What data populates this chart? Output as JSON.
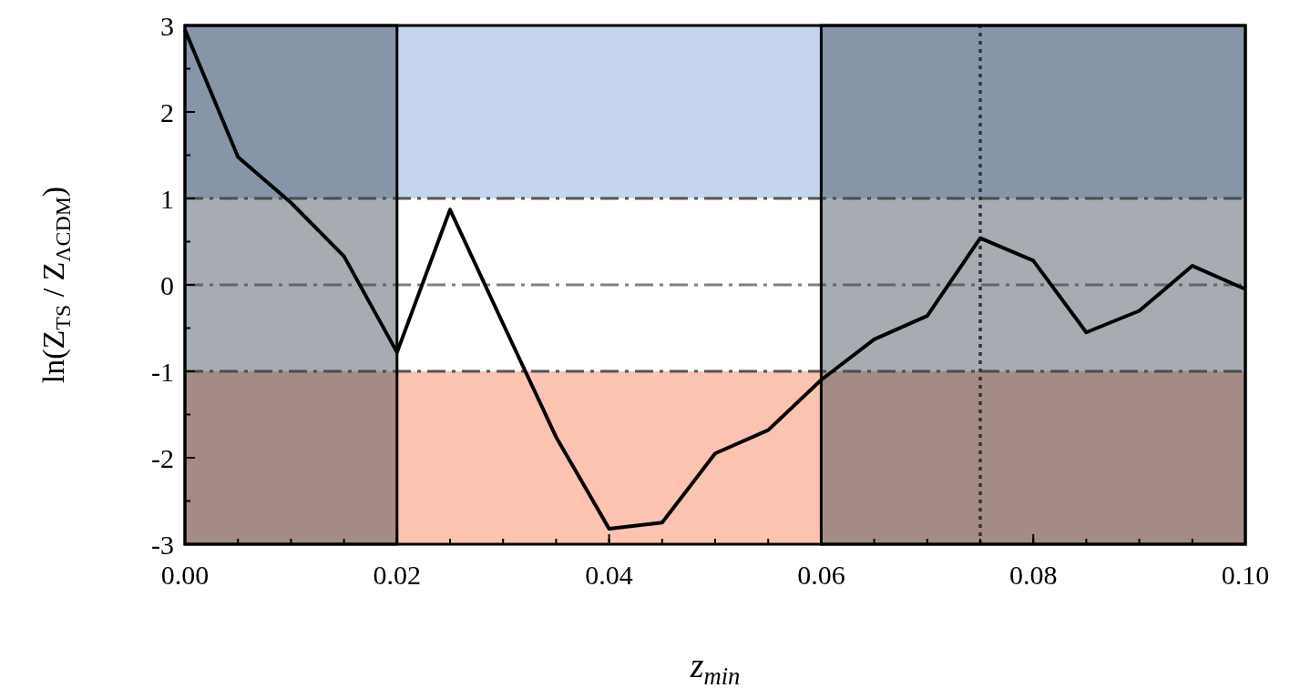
{
  "chart_data": {
    "type": "line",
    "xlabel": "z$_{min}$",
    "ylabel": "ln(Z$_{TS}$ / Z$_{ΛCDM}$)",
    "x": [
      0,
      0.005,
      0.01,
      0.015,
      0.02,
      0.025,
      0.03,
      0.035,
      0.04,
      0.045,
      0.05,
      0.055,
      0.06,
      0.065,
      0.07,
      0.075,
      0.08,
      0.085,
      0.09,
      0.095,
      0.1
    ],
    "series": [
      {
        "color": "#000000",
        "values": [
          2.95,
          1.48,
          0.95,
          0.33,
          -0.78,
          0.87,
          -0.45,
          -1.76,
          -2.82,
          -2.75,
          -1.95,
          -1.68,
          -1.1,
          -0.63,
          -0.36,
          0.54,
          0.28,
          -0.55,
          -0.3,
          0.22,
          -0.05
        ]
      }
    ],
    "xlim": [
      0,
      0.1
    ],
    "ylim": [
      -3,
      3
    ],
    "xticks": [
      {
        "value": 0,
        "label": "0.00"
      },
      {
        "value": 0.02,
        "label": "0.02"
      },
      {
        "value": 0.04,
        "label": "0.04"
      },
      {
        "value": 0.06,
        "label": "0.06"
      },
      {
        "value": 0.08,
        "label": "0.08"
      },
      {
        "value": 0.1,
        "label": "0.10"
      }
    ],
    "yticks": [
      -3,
      -2,
      -1,
      0,
      1,
      2,
      3
    ],
    "bands": [
      {
        "axis": "y",
        "from": 1,
        "to": 3,
        "color": "#c5d5ee"
      },
      {
        "axis": "y",
        "from": -3,
        "to": -1,
        "color": "#fcc3b0"
      },
      {
        "axis": "x",
        "from": 0,
        "to": 0.02,
        "color": "#3a4652"
      },
      {
        "axis": "x",
        "from": 0.06,
        "to": 0.1,
        "color": "#3a4652"
      }
    ],
    "ref_lines": [
      {
        "axis": "y",
        "value": 1,
        "color": "#555555",
        "line_style": "dashed"
      },
      {
        "axis": "y",
        "value": 0,
        "color": "#808080",
        "line_style": "dashed"
      },
      {
        "axis": "y",
        "value": -1,
        "color": "#555555",
        "line_style": "dashed"
      },
      {
        "axis": "x",
        "value": 0.075,
        "color": "#333333",
        "line_style": "dotted"
      }
    ],
    "marker": "none",
    "line_style": "solid",
    "grid": false
  }
}
